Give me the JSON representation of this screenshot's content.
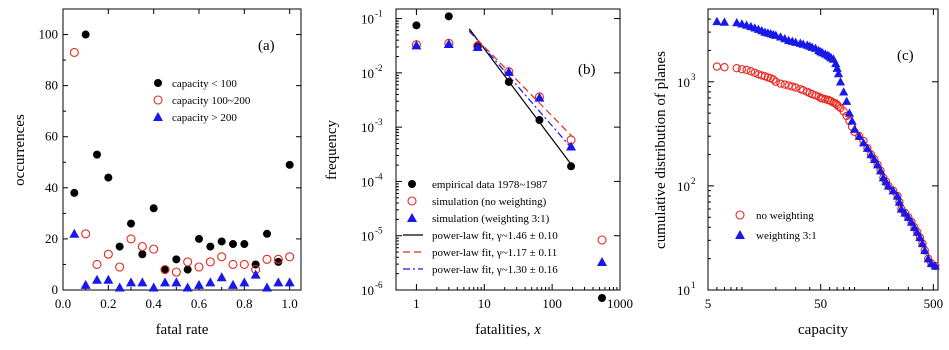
{
  "chart_data": [
    {
      "type": "scatter",
      "panel_label": "(a)",
      "xlabel": "fatal rate",
      "ylabel": "occurrences",
      "xlim": [
        0,
        1.05
      ],
      "ylim": [
        0,
        110
      ],
      "x_ticks": [
        "0.0",
        "0.2",
        "0.4",
        "0.6",
        "0.8",
        "1.0"
      ],
      "y_ticks": [
        "0",
        "20",
        "40",
        "60",
        "80",
        "100"
      ],
      "legend_position": "top-right",
      "series": [
        {
          "name": "capacity < 100",
          "marker": "filled-circle",
          "color": "#000000",
          "x": [
            0.05,
            0.1,
            0.15,
            0.2,
            0.25,
            0.3,
            0.35,
            0.4,
            0.45,
            0.5,
            0.55,
            0.6,
            0.65,
            0.7,
            0.75,
            0.8,
            0.85,
            0.9,
            0.95,
            1.0
          ],
          "y": [
            38,
            100,
            53,
            44,
            17,
            26,
            14,
            32,
            8,
            12,
            8,
            20,
            17,
            19,
            18,
            18,
            10,
            22,
            11,
            49
          ]
        },
        {
          "name": "capacity 100~200",
          "marker": "open-circle",
          "color": "#e8281e",
          "x": [
            0.05,
            0.1,
            0.15,
            0.2,
            0.25,
            0.3,
            0.35,
            0.4,
            0.45,
            0.5,
            0.55,
            0.6,
            0.65,
            0.7,
            0.75,
            0.8,
            0.85,
            0.9,
            0.95,
            1.0
          ],
          "y": [
            93,
            22,
            10,
            14,
            9,
            20,
            17,
            16,
            8,
            7,
            11,
            9,
            11,
            13,
            10,
            10,
            8,
            12,
            12,
            13
          ]
        },
        {
          "name": "capacity > 200",
          "marker": "filled-triangle",
          "color": "#1818e8",
          "x": [
            0.05,
            0.1,
            0.15,
            0.2,
            0.25,
            0.3,
            0.35,
            0.4,
            0.45,
            0.5,
            0.55,
            0.6,
            0.65,
            0.7,
            0.75,
            0.8,
            0.85,
            0.9,
            0.95,
            1.0
          ],
          "y": [
            22,
            2,
            4,
            4,
            1,
            3,
            3,
            1,
            3,
            3,
            1,
            2,
            3,
            5,
            2,
            3,
            6,
            1,
            3,
            3
          ]
        }
      ]
    },
    {
      "type": "scatter",
      "panel_label": "(b)",
      "xlabel": "fatalities, ",
      "xlabel_var": "x",
      "ylabel": "frequency",
      "xscale": "log",
      "yscale": "log",
      "xlim": [
        0.5,
        1000
      ],
      "ylim": [
        1e-06,
        0.15
      ],
      "x_ticks": [
        "1",
        "10",
        "100",
        "1000"
      ],
      "y_ticks": [
        "10",
        "10",
        "10",
        "10",
        "10",
        "10"
      ],
      "y_tick_exponents": [
        "-1",
        "-2",
        "-3",
        "-4",
        "-5",
        "-6"
      ],
      "legend_position": "bottom-left",
      "series": [
        {
          "name": "empirical data 1978~1987",
          "marker": "filled-circle",
          "color": "#000000",
          "x": [
            1,
            3,
            8,
            23,
            65,
            190
          ],
          "y": [
            0.075,
            0.11,
            0.032,
            0.0068,
            0.00135,
            0.00019
          ]
        },
        {
          "name": "simulation (no weighting)",
          "marker": "open-circle",
          "color": "#e8281e",
          "x": [
            1,
            3,
            8,
            23,
            65,
            190
          ],
          "y": [
            0.033,
            0.035,
            0.031,
            0.0105,
            0.0036,
            0.00058
          ]
        },
        {
          "name": "simulation (weighting 3:1)",
          "marker": "filled-triangle",
          "color": "#1818e8",
          "x": [
            1,
            3,
            8,
            23,
            65,
            190
          ],
          "y": [
            0.032,
            0.034,
            0.03,
            0.0104,
            0.0035,
            0.00044
          ]
        }
      ],
      "fits": [
        {
          "name": "power-law fit, γ~1.46 ± 0.10",
          "style": "solid",
          "color": "#000000",
          "x": [
            6,
            200
          ],
          "y": [
            0.065,
            0.00019
          ]
        },
        {
          "name": "power-law fit, γ~1.17 ± 0.11",
          "style": "dashed",
          "color": "#e8281e",
          "x": [
            6,
            200
          ],
          "y": [
            0.058,
            0.00066
          ]
        },
        {
          "name": "power-law fit, γ~1.30 ± 0.16",
          "style": "dashdot",
          "color": "#1818e8",
          "x": [
            6,
            200
          ],
          "y": [
            0.06,
            0.00039
          ]
        }
      ]
    },
    {
      "type": "scatter",
      "panel_label": "(c)",
      "xlabel": "capacity",
      "ylabel": "cumulative distribution of planes",
      "xscale": "log",
      "yscale": "log",
      "xlim": [
        5,
        550
      ],
      "ylim": [
        10,
        5000
      ],
      "x_ticks": [
        "5",
        "50",
        "500"
      ],
      "y_ticks": [
        "10",
        "10",
        "10"
      ],
      "y_tick_exponents": [
        "1",
        "2",
        "3"
      ],
      "legend_position": "bottom-left",
      "series": [
        {
          "name": "no weighting",
          "marker": "open-circle",
          "color": "#e8281e",
          "x": [
            6,
            7,
            9,
            10,
            11,
            12,
            13,
            14,
            15,
            16,
            17,
            18,
            19,
            20,
            22,
            24,
            26,
            28,
            30,
            33,
            35,
            38,
            40,
            42,
            45,
            48,
            50,
            52,
            55,
            58,
            60,
            62,
            65,
            68,
            70,
            72,
            75,
            80,
            85,
            90,
            95,
            100,
            110,
            120,
            130,
            140,
            150,
            160,
            170,
            180,
            190,
            200,
            220,
            240,
            250,
            260,
            280,
            300,
            320,
            340,
            360,
            380,
            400,
            420,
            450,
            480,
            520
          ],
          "y": [
            1400,
            1380,
            1350,
            1320,
            1300,
            1260,
            1220,
            1180,
            1150,
            1130,
            1100,
            1080,
            1050,
            1000,
            960,
            940,
            920,
            900,
            880,
            850,
            830,
            800,
            780,
            760,
            740,
            720,
            700,
            690,
            680,
            670,
            660,
            650,
            630,
            620,
            600,
            580,
            560,
            520,
            470,
            420,
            370,
            330,
            300,
            270,
            230,
            200,
            180,
            160,
            140,
            120,
            110,
            100,
            90,
            80,
            70,
            60,
            55,
            50,
            45,
            40,
            36,
            32,
            28,
            24,
            20,
            18,
            17
          ]
        },
        {
          "name": "weighting 3:1",
          "marker": "filled-triangle",
          "color": "#1818e8",
          "x": [
            6,
            7,
            9,
            10,
            11,
            12,
            13,
            14,
            15,
            16,
            17,
            18,
            19,
            20,
            22,
            24,
            26,
            28,
            30,
            33,
            35,
            38,
            40,
            42,
            45,
            48,
            50,
            52,
            55,
            58,
            60,
            62,
            65,
            68,
            70,
            72,
            75,
            80,
            85,
            90,
            95,
            100,
            110,
            120,
            130,
            140,
            150,
            160,
            170,
            180,
            190,
            200,
            220,
            240,
            250,
            260,
            280,
            300,
            320,
            340,
            360,
            380,
            400,
            420,
            450,
            480,
            520
          ],
          "y": [
            3800,
            3750,
            3700,
            3600,
            3500,
            3400,
            3300,
            3200,
            3100,
            3000,
            2950,
            2900,
            2850,
            2800,
            2700,
            2600,
            2500,
            2450,
            2400,
            2350,
            2300,
            2250,
            2200,
            2150,
            2100,
            2000,
            1950,
            1900,
            1850,
            1800,
            1750,
            1700,
            1650,
            1500,
            1350,
            1200,
            1000,
            800,
            650,
            500,
            420,
            350,
            300,
            260,
            230,
            200,
            180,
            160,
            140,
            120,
            110,
            100,
            90,
            80,
            70,
            60,
            55,
            50,
            45,
            40,
            36,
            32,
            28,
            24,
            20,
            18,
            17
          ]
        }
      ]
    }
  ]
}
